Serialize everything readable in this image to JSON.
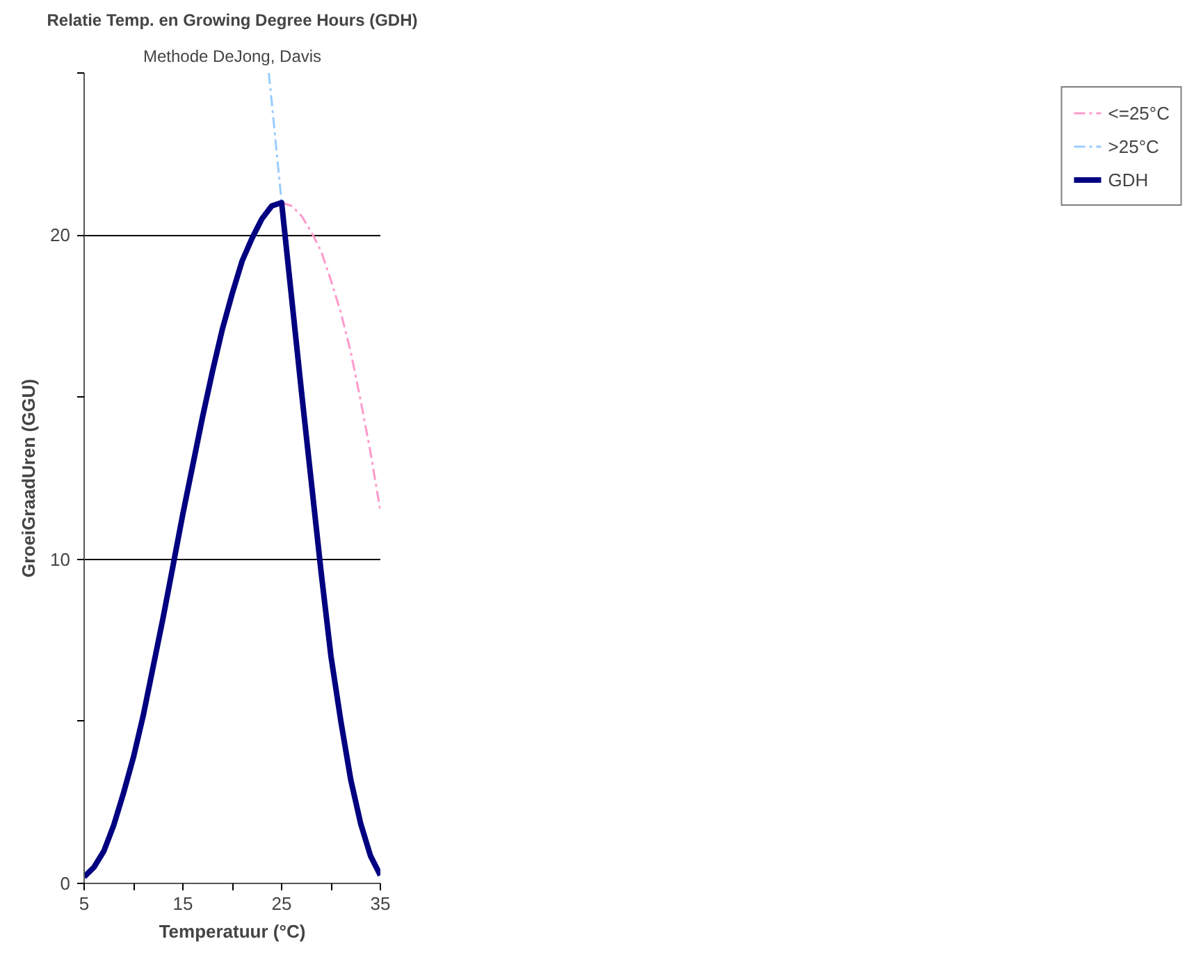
{
  "chart_data": {
    "type": "line",
    "title": "Relatie Temp. en Growing Degree Hours (GDH)",
    "subtitle": "Methode DeJong, Davis",
    "xlabel": "Temperatuur (°C)",
    "ylabel": "GroeiGraadUren (GGU)",
    "xlim": [
      5,
      35
    ],
    "ylim": [
      0,
      25
    ],
    "xticks": [
      5,
      {
        "value": 10,
        "label": null
      },
      15,
      {
        "value": 20,
        "label": null
      },
      25,
      {
        "value": 30,
        "label": null
      },
      35
    ],
    "yticks": [
      0,
      {
        "value": 5,
        "label": null
      },
      10,
      {
        "value": 15,
        "label": null
      },
      20,
      {
        "value": 25,
        "label": null
      }
    ],
    "grid": "y",
    "legend": "right",
    "series": [
      {
        "name": "<=25°C",
        "color": "#ff99cc",
        "line_style": "dashdot",
        "x": [
          25,
          26,
          27,
          28,
          29,
          30,
          31,
          32,
          33,
          34,
          35
        ],
        "values": [
          21.0,
          20.9,
          20.6,
          20.1,
          19.5,
          18.6,
          17.6,
          16.4,
          14.9,
          13.3,
          11.5
        ]
      },
      {
        "name": ">25°C",
        "color": "#99ccff",
        "line_style": "dashdot",
        "x": [
          23.7,
          24,
          25
        ],
        "values": [
          25,
          24.1,
          21.0
        ]
      },
      {
        "name": "GDH",
        "color": "#000080",
        "line_style": "solid",
        "x": [
          5,
          6,
          7,
          8,
          9,
          10,
          11,
          12,
          13,
          14,
          15,
          16,
          17,
          18,
          19,
          20,
          21,
          22,
          23,
          24,
          25,
          26,
          27,
          28,
          29,
          30,
          31,
          32,
          33,
          34,
          35
        ],
        "values": [
          0.2,
          0.5,
          1.0,
          1.8,
          2.8,
          3.9,
          5.2,
          6.7,
          8.2,
          9.8,
          11.4,
          12.9,
          14.4,
          15.8,
          17.1,
          18.2,
          19.2,
          19.9,
          20.5,
          20.9,
          21.0,
          18.1,
          15.2,
          12.4,
          9.6,
          7.0,
          5.0,
          3.2,
          1.85,
          0.85,
          0.25
        ]
      }
    ]
  }
}
